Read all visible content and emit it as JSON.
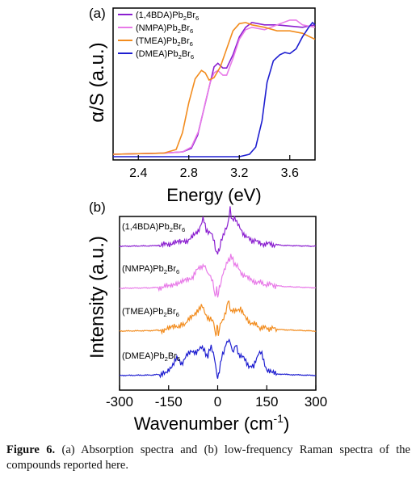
{
  "chart_data": [
    {
      "type": "line",
      "panel_label": "(a)",
      "xlabel": "Energy (eV)",
      "ylabel": "α/S (a.u.)",
      "xlim": [
        2.2,
        3.8
      ],
      "ylim": [
        0,
        1.2
      ],
      "xticks": [
        2.4,
        2.8,
        3.2,
        3.6
      ],
      "xtick_labels": [
        "2.4",
        "2.8",
        "3.2",
        "3.6"
      ],
      "y_tick_labels_shown": false,
      "grid": false,
      "legend_position": "top-left",
      "series": [
        {
          "name": "(1,4BDA)Pb2Br6",
          "legend": {
            "base": "(1,4BDA)Pb",
            "sub1": "2",
            "mid": "Br",
            "sub2": "6"
          },
          "color": "#8B1FD0",
          "points": [
            [
              2.2,
              0.02
            ],
            [
              2.6,
              0.03
            ],
            [
              2.75,
              0.04
            ],
            [
              2.82,
              0.07
            ],
            [
              2.87,
              0.18
            ],
            [
              2.92,
              0.4
            ],
            [
              2.97,
              0.62
            ],
            [
              3.0,
              0.75
            ],
            [
              3.03,
              0.78
            ],
            [
              3.07,
              0.74
            ],
            [
              3.1,
              0.74
            ],
            [
              3.15,
              0.85
            ],
            [
              3.2,
              1.0
            ],
            [
              3.25,
              1.08
            ],
            [
              3.3,
              1.12
            ],
            [
              3.4,
              1.1
            ],
            [
              3.5,
              1.1
            ],
            [
              3.6,
              1.09
            ],
            [
              3.7,
              1.08
            ],
            [
              3.8,
              1.1
            ]
          ]
        },
        {
          "name": "(NMPA)Pb2Br6",
          "legend": {
            "base": "(NMPA)Pb",
            "sub1": "2",
            "mid": "Br",
            "sub2": "6"
          },
          "color": "#E87AE8",
          "points": [
            [
              2.2,
              0.02
            ],
            [
              2.6,
              0.03
            ],
            [
              2.75,
              0.04
            ],
            [
              2.82,
              0.08
            ],
            [
              2.88,
              0.22
            ],
            [
              2.93,
              0.45
            ],
            [
              2.97,
              0.62
            ],
            [
              3.0,
              0.7
            ],
            [
              3.03,
              0.72
            ],
            [
              3.07,
              0.68
            ],
            [
              3.1,
              0.68
            ],
            [
              3.15,
              0.82
            ],
            [
              3.2,
              0.98
            ],
            [
              3.25,
              1.06
            ],
            [
              3.3,
              1.08
            ],
            [
              3.4,
              1.06
            ],
            [
              3.5,
              1.1
            ],
            [
              3.6,
              1.14
            ],
            [
              3.65,
              1.14
            ],
            [
              3.7,
              1.1
            ],
            [
              3.8,
              1.08
            ]
          ]
        },
        {
          "name": "(TMEA)Pb2Br6",
          "legend": {
            "base": "(TMEA)Pb",
            "sub1": "2",
            "mid": "Br",
            "sub2": "6"
          },
          "color": "#F28C1E",
          "points": [
            [
              2.2,
              0.02
            ],
            [
              2.6,
              0.03
            ],
            [
              2.7,
              0.06
            ],
            [
              2.75,
              0.2
            ],
            [
              2.8,
              0.45
            ],
            [
              2.85,
              0.65
            ],
            [
              2.9,
              0.72
            ],
            [
              2.93,
              0.7
            ],
            [
              2.96,
              0.64
            ],
            [
              3.0,
              0.66
            ],
            [
              3.05,
              0.75
            ],
            [
              3.1,
              0.9
            ],
            [
              3.15,
              1.05
            ],
            [
              3.2,
              1.11
            ],
            [
              3.25,
              1.12
            ],
            [
              3.3,
              1.1
            ],
            [
              3.4,
              1.08
            ],
            [
              3.5,
              1.05
            ],
            [
              3.6,
              1.05
            ],
            [
              3.7,
              1.03
            ],
            [
              3.8,
              0.98
            ]
          ]
        },
        {
          "name": "(DMEA)Pb2Br6",
          "legend": {
            "base": "(DMEA)Pb",
            "sub1": "2",
            "mid": "Br",
            "sub2": "6"
          },
          "color": "#1E1ED0",
          "points": [
            [
              2.2,
              0.0
            ],
            [
              3.2,
              0.0
            ],
            [
              3.28,
              0.02
            ],
            [
              3.33,
              0.08
            ],
            [
              3.38,
              0.3
            ],
            [
              3.42,
              0.62
            ],
            [
              3.47,
              0.8
            ],
            [
              3.52,
              0.85
            ],
            [
              3.56,
              0.87
            ],
            [
              3.6,
              0.86
            ],
            [
              3.65,
              0.9
            ],
            [
              3.7,
              1.0
            ],
            [
              3.75,
              1.08
            ],
            [
              3.78,
              1.12
            ],
            [
              3.8,
              1.1
            ]
          ]
        }
      ]
    },
    {
      "type": "line",
      "panel_label": "(b)",
      "xlabel": "Wavenumber (cm",
      "xlabel_sup": "-1",
      "xlabel_close": ")",
      "ylabel": "Intensity (a.u.)",
      "xlim": [
        -300,
        300
      ],
      "ylim": [
        0,
        4
      ],
      "xticks": [
        -300,
        -150,
        0,
        150,
        300
      ],
      "xtick_labels": [
        "-300",
        "-150",
        "0",
        "150",
        "300"
      ],
      "y_tick_labels_shown": false,
      "grid": false,
      "series": [
        {
          "name": "(1,4BDA)Pb2Br6",
          "label": {
            "base": "(1,4BDA)Pb",
            "sub1": "2",
            "mid": "Br",
            "sub2": "6"
          },
          "color": "#8B1FD0",
          "offset": 3,
          "points": [
            [
              -300,
              0.02
            ],
            [
              -200,
              0.03
            ],
            [
              -150,
              0.06
            ],
            [
              -130,
              0.14
            ],
            [
              -110,
              0.1
            ],
            [
              -80,
              0.2
            ],
            [
              -60,
              0.35
            ],
            [
              -45,
              0.65
            ],
            [
              -35,
              0.4
            ],
            [
              -20,
              0.3
            ],
            [
              -10,
              0.15
            ],
            [
              -5,
              -0.1
            ],
            [
              0,
              -0.12
            ],
            [
              5,
              -0.1
            ],
            [
              10,
              0.1
            ],
            [
              20,
              0.35
            ],
            [
              30,
              0.45
            ],
            [
              38,
              0.85
            ],
            [
              45,
              0.6
            ],
            [
              55,
              0.65
            ],
            [
              65,
              0.45
            ],
            [
              80,
              0.3
            ],
            [
              95,
              0.18
            ],
            [
              120,
              0.12
            ],
            [
              140,
              0.08
            ],
            [
              200,
              0.04
            ],
            [
              300,
              0.02
            ]
          ]
        },
        {
          "name": "(NMPA)Pb2Br6",
          "label": {
            "base": "(NMPA)Pb",
            "sub1": "2",
            "mid": "Br",
            "sub2": "6"
          },
          "color": "#E87AE8",
          "offset": 2,
          "points": [
            [
              -300,
              0.02
            ],
            [
              -200,
              0.03
            ],
            [
              -150,
              0.06
            ],
            [
              -130,
              0.14
            ],
            [
              -110,
              0.16
            ],
            [
              -90,
              0.2
            ],
            [
              -75,
              0.3
            ],
            [
              -60,
              0.45
            ],
            [
              -45,
              0.55
            ],
            [
              -35,
              0.45
            ],
            [
              -25,
              0.3
            ],
            [
              -15,
              0.2
            ],
            [
              -8,
              -0.2
            ],
            [
              -3,
              0.0
            ],
            [
              0,
              -0.2
            ],
            [
              5,
              0.0
            ],
            [
              10,
              0.15
            ],
            [
              20,
              0.45
            ],
            [
              30,
              0.6
            ],
            [
              40,
              0.75
            ],
            [
              50,
              0.6
            ],
            [
              60,
              0.5
            ],
            [
              75,
              0.35
            ],
            [
              90,
              0.25
            ],
            [
              110,
              0.18
            ],
            [
              140,
              0.12
            ],
            [
              200,
              0.06
            ],
            [
              300,
              0.03
            ]
          ]
        },
        {
          "name": "(TMEA)Pb2Br6",
          "label": {
            "base": "(TMEA)Pb",
            "sub1": "2",
            "mid": "Br",
            "sub2": "6"
          },
          "color": "#F28C1E",
          "offset": 1,
          "points": [
            [
              -300,
              0.02
            ],
            [
              -200,
              0.03
            ],
            [
              -150,
              0.06
            ],
            [
              -130,
              0.15
            ],
            [
              -115,
              0.12
            ],
            [
              -90,
              0.25
            ],
            [
              -75,
              0.4
            ],
            [
              -60,
              0.45
            ],
            [
              -50,
              0.62
            ],
            [
              -40,
              0.45
            ],
            [
              -25,
              0.28
            ],
            [
              -12,
              0.25
            ],
            [
              -6,
              -0.1
            ],
            [
              -2,
              0.15
            ],
            [
              2,
              -0.05
            ],
            [
              8,
              0.15
            ],
            [
              15,
              0.28
            ],
            [
              25,
              0.42
            ],
            [
              32,
              0.75
            ],
            [
              40,
              0.5
            ],
            [
              55,
              0.45
            ],
            [
              70,
              0.55
            ],
            [
              85,
              0.3
            ],
            [
              100,
              0.22
            ],
            [
              130,
              0.1
            ],
            [
              200,
              0.05
            ],
            [
              300,
              0.02
            ]
          ]
        },
        {
          "name": "(DMEA)Pb2Br6",
          "label": {
            "base": "(DMEA)Pb",
            "sub1": "2",
            "mid": "Br",
            "sub2": "6"
          },
          "color": "#1E1ED0",
          "offset": 0,
          "points": [
            [
              -300,
              0.02
            ],
            [
              -200,
              0.03
            ],
            [
              -160,
              0.06
            ],
            [
              -140,
              0.25
            ],
            [
              -125,
              0.4
            ],
            [
              -110,
              0.3
            ],
            [
              -95,
              0.45
            ],
            [
              -80,
              0.6
            ],
            [
              -65,
              0.5
            ],
            [
              -50,
              0.7
            ],
            [
              -40,
              0.55
            ],
            [
              -30,
              0.45
            ],
            [
              -20,
              0.7
            ],
            [
              -10,
              0.4
            ],
            [
              -3,
              0.1
            ],
            [
              0,
              -0.05
            ],
            [
              5,
              0.15
            ],
            [
              15,
              0.5
            ],
            [
              25,
              0.7
            ],
            [
              35,
              0.85
            ],
            [
              45,
              0.55
            ],
            [
              55,
              0.7
            ],
            [
              65,
              0.5
            ],
            [
              80,
              0.4
            ],
            [
              95,
              0.25
            ],
            [
              110,
              0.2
            ],
            [
              125,
              0.55
            ],
            [
              135,
              0.5
            ],
            [
              150,
              0.15
            ],
            [
              170,
              0.06
            ],
            [
              220,
              0.04
            ],
            [
              300,
              0.02
            ]
          ]
        }
      ]
    }
  ],
  "caption": {
    "label": "Figure 6.",
    "text": " (a) Absorption spectra and (b) low-frequency Raman spectra of the compounds reported here."
  }
}
